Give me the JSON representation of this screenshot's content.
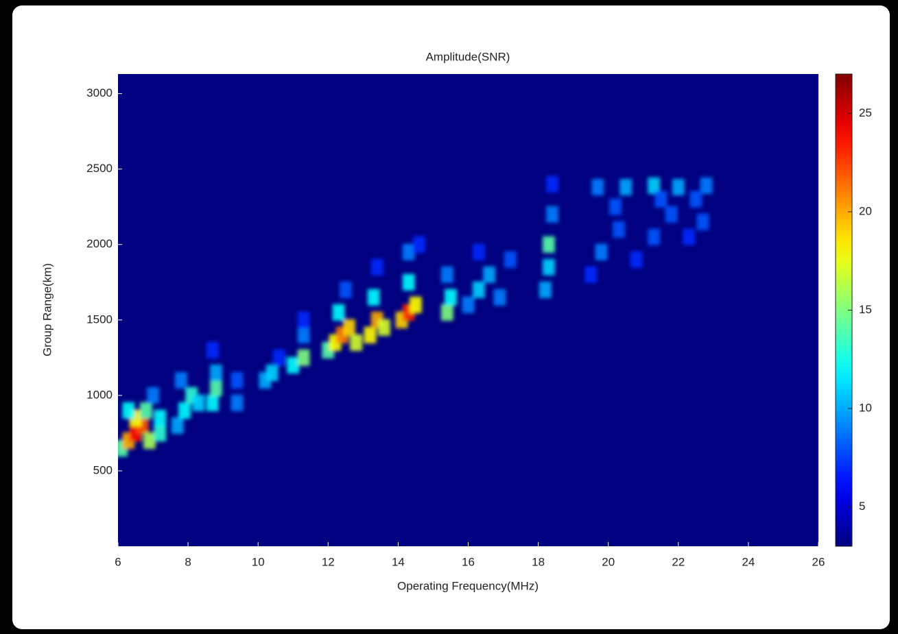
{
  "chart_data": {
    "type": "heatmap",
    "title": "Amplitude(SNR)",
    "xlabel": "Operating Frequency(MHz)",
    "ylabel": "Group Range(km)",
    "xlim": [
      6,
      26
    ],
    "xticks": [
      6,
      8,
      10,
      12,
      14,
      16,
      18,
      20,
      22,
      24,
      26
    ],
    "ylim": [
      0,
      3130
    ],
    "yticks": [
      500,
      1000,
      1500,
      2000,
      2500,
      3000
    ],
    "clim": [
      3,
      27
    ],
    "cticks": [
      5,
      10,
      15,
      20,
      25
    ],
    "colormap": "jet",
    "x": [
      6.1,
      6.3,
      6.5,
      6.7,
      6.5,
      6.9,
      6.3,
      6.8,
      7.2,
      7.2,
      7.0,
      7.7,
      7.9,
      8.1,
      7.8,
      8.3,
      8.7,
      8.8,
      8.8,
      8.7,
      9.4,
      9.4,
      10.2,
      10.4,
      10.6,
      11.0,
      11.3,
      11.3,
      11.3,
      12.0,
      12.2,
      12.4,
      12.6,
      12.8,
      12.3,
      12.5,
      13.2,
      13.4,
      13.6,
      13.3,
      13.4,
      14.1,
      14.3,
      14.5,
      14.3,
      14.3,
      14.6,
      15.4,
      15.5,
      15.4,
      16.0,
      16.3,
      16.6,
      16.9,
      17.2,
      16.3,
      18.2,
      18.3,
      18.3,
      18.4,
      18.4,
      19.5,
      19.8,
      20.3,
      20.8,
      21.3,
      21.8,
      22.3,
      22.7,
      19.7,
      20.5,
      21.3,
      22.0,
      22.8,
      20.2,
      21.5,
      22.5
    ],
    "y": [
      650,
      700,
      750,
      800,
      850,
      700,
      900,
      900,
      750,
      850,
      1000,
      800,
      900,
      1000,
      1100,
      950,
      950,
      1050,
      1150,
      1300,
      950,
      1100,
      1100,
      1150,
      1250,
      1200,
      1250,
      1400,
      1500,
      1300,
      1350,
      1400,
      1450,
      1350,
      1550,
      1700,
      1400,
      1500,
      1450,
      1650,
      1850,
      1500,
      1550,
      1600,
      1750,
      1950,
      2000,
      1550,
      1650,
      1800,
      1600,
      1700,
      1800,
      1650,
      1900,
      1950,
      1700,
      1850,
      2000,
      2200,
      2400,
      1800,
      1950,
      2100,
      1900,
      2050,
      2200,
      2050,
      2150,
      2380,
      2380,
      2390,
      2380,
      2390,
      2250,
      2300,
      2300
    ],
    "values": [
      14,
      20,
      24,
      22,
      18,
      16,
      12,
      14,
      13,
      12,
      9,
      10,
      12,
      13,
      9,
      11,
      12,
      14,
      10,
      7,
      9,
      8,
      10,
      11,
      7,
      12,
      15,
      9,
      7,
      14,
      18,
      21,
      19,
      17,
      12,
      8,
      18,
      20,
      17,
      12,
      7,
      19,
      23,
      18,
      12,
      9,
      7,
      15,
      12,
      9,
      9,
      11,
      10,
      9,
      8,
      7,
      10,
      11,
      14,
      9,
      7,
      7,
      9,
      8,
      7,
      8,
      8,
      7,
      8,
      9,
      10,
      11,
      10,
      9,
      8,
      8,
      8
    ]
  }
}
